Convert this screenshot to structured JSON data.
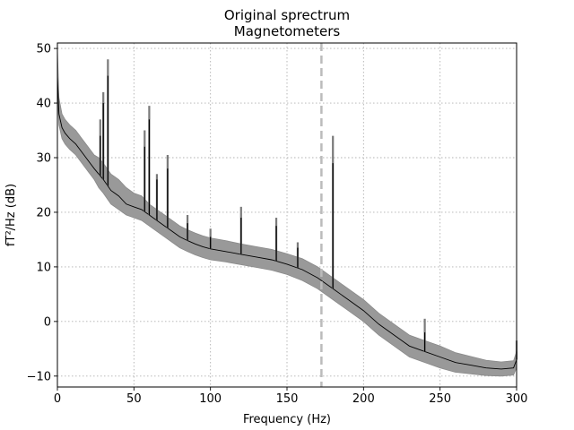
{
  "chart_data": {
    "type": "line",
    "title": "Original sprectrum",
    "subtitle": "Magnetometers",
    "xlabel": "Frequency (Hz)",
    "ylabel": "fT²/Hz (dB)",
    "xlim": [
      0,
      300
    ],
    "ylim": [
      -12,
      51
    ],
    "xticks": [
      0,
      50,
      100,
      150,
      200,
      250,
      300
    ],
    "yticks": [
      -10,
      0,
      10,
      20,
      30,
      40,
      50
    ],
    "grid": true,
    "vline": {
      "x": 172.5,
      "style": "dashed",
      "color": "#bbbbbb"
    },
    "colors": {
      "mean": "#000000",
      "band": "#999999"
    },
    "series": [
      {
        "x": [
          0,
          1,
          3,
          5,
          8,
          12,
          16,
          20,
          24,
          27,
          30,
          35,
          40,
          45,
          50,
          55,
          60,
          65,
          70,
          75,
          80,
          85,
          90,
          95,
          100,
          110,
          120,
          130,
          140,
          150,
          160,
          170,
          180,
          190,
          200,
          210,
          220,
          230,
          240,
          250,
          260,
          270,
          280,
          290,
          298,
          300
        ],
        "mean": [
          45,
          38,
          35.5,
          34.5,
          33.5,
          32.5,
          31,
          29.5,
          28,
          27,
          26,
          24,
          23,
          21.5,
          21,
          20.5,
          19.5,
          18.5,
          17.5,
          16.5,
          15.5,
          14.8,
          14.2,
          13.7,
          13.3,
          12.8,
          12.3,
          11.8,
          11.3,
          10.5,
          9.5,
          8,
          6,
          4,
          2,
          -0.5,
          -2.5,
          -4.5,
          -5.5,
          -6.5,
          -7.5,
          -8,
          -8.5,
          -8.7,
          -8.5,
          -7
        ],
        "lower": [
          42,
          36,
          33.5,
          32.5,
          31.5,
          30.5,
          29,
          27.5,
          26,
          24.5,
          23.5,
          21.5,
          20.5,
          19.5,
          19,
          18.5,
          17.5,
          16.5,
          15.5,
          14.5,
          13.5,
          12.8,
          12.2,
          11.7,
          11.3,
          10.9,
          10.4,
          9.9,
          9.4,
          8.6,
          7.5,
          6,
          4,
          2,
          0,
          -2.5,
          -4.5,
          -6.5,
          -7.5,
          -8.5,
          -9.3,
          -9.6,
          -9.9,
          -10,
          -9.8,
          -8.5
        ],
        "upper": [
          50,
          41,
          38,
          37,
          36,
          35,
          33.5,
          32,
          30.5,
          30,
          29,
          27,
          26,
          24.5,
          23.5,
          23,
          21.5,
          20.5,
          19.5,
          18.5,
          17.5,
          16.8,
          16.2,
          15.7,
          15.3,
          14.8,
          14.2,
          13.7,
          13.2,
          12.4,
          11.5,
          10,
          8,
          6,
          4,
          1.5,
          -0.5,
          -2.5,
          -3.5,
          -4.5,
          -5.7,
          -6.4,
          -7.1,
          -7.4,
          -7.2,
          -5.5
        ]
      }
    ],
    "peaks": [
      {
        "x": 28,
        "y": 34,
        "upper": 37
      },
      {
        "x": 30,
        "y": 40,
        "upper": 42
      },
      {
        "x": 33,
        "y": 45,
        "upper": 48
      },
      {
        "x": 57,
        "y": 32,
        "upper": 35
      },
      {
        "x": 60,
        "y": 37,
        "upper": 39.5
      },
      {
        "x": 65,
        "y": 26,
        "upper": 27
      },
      {
        "x": 72,
        "y": 28,
        "upper": 30.5
      },
      {
        "x": 85,
        "y": 18,
        "upper": 19.5
      },
      {
        "x": 100,
        "y": 15.5,
        "upper": 17
      },
      {
        "x": 120,
        "y": 19,
        "upper": 21
      },
      {
        "x": 143,
        "y": 17.5,
        "upper": 19
      },
      {
        "x": 157,
        "y": 13.5,
        "upper": 14.5
      },
      {
        "x": 180,
        "y": 29,
        "upper": 34
      },
      {
        "x": 240,
        "y": -2,
        "upper": 0.5
      },
      {
        "x": 300,
        "y": -5.5,
        "upper": -3.5
      }
    ]
  }
}
